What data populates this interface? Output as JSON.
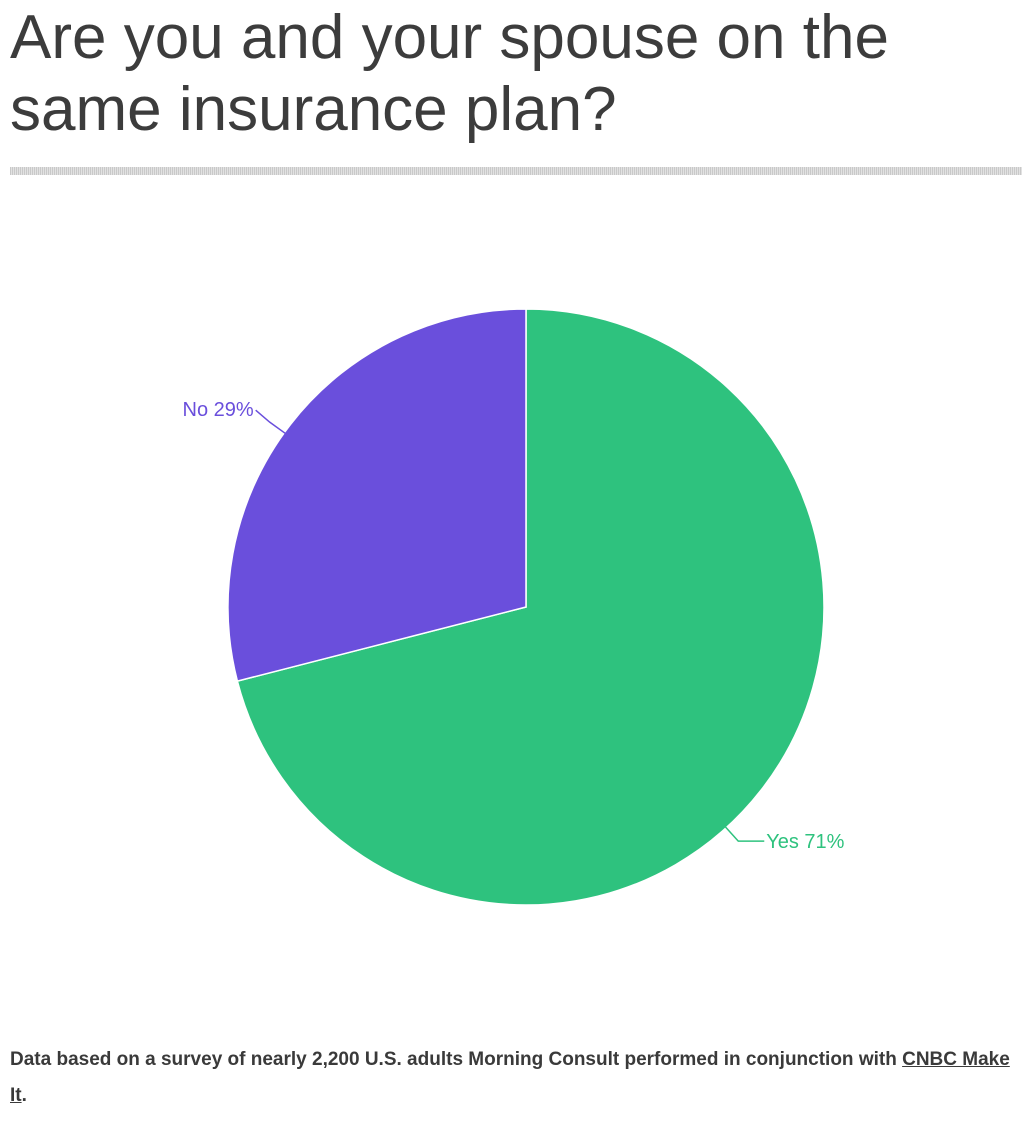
{
  "title": "Are you and your spouse on the same insurance plan?",
  "chart_data": {
    "type": "pie",
    "title": "Are you and your spouse on the same insurance plan?",
    "slices": [
      {
        "label": "Yes",
        "value": 71,
        "display": "Yes 71%",
        "color": "#2ec27e"
      },
      {
        "label": "No",
        "value": 29,
        "display": "No 29%",
        "color": "#6a4fdc"
      }
    ],
    "unit": "%"
  },
  "footnote": {
    "text": "Data based on a  survey of nearly 2,200 U.S. adults Morning Consult performed in conjunction with ",
    "link_text": "CNBC Make It",
    "suffix": "."
  }
}
